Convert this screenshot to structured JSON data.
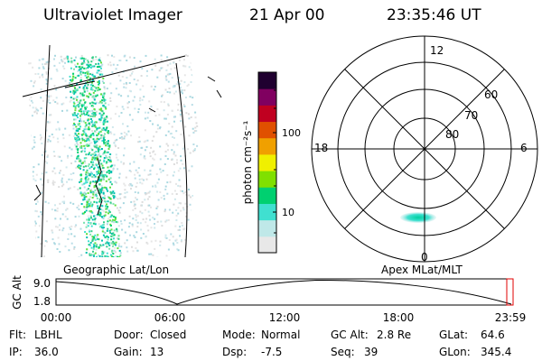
{
  "header": {
    "instrument": "Ultraviolet Imager",
    "date": "21 Apr 00",
    "time": "23:35:46 UT"
  },
  "colorbar": {
    "unit_label": "photon cm⁻²s⁻¹",
    "ticks": [
      "100",
      "10"
    ],
    "colors": [
      "#e8e8e8",
      "#bfe8e8",
      "#40e0d0",
      "#00d070",
      "#80e000",
      "#f0f000",
      "#f0a000",
      "#e05000",
      "#c00020",
      "#800060",
      "#200030"
    ]
  },
  "polar_plot": {
    "mlt_labels": {
      "top": "12",
      "left": "18",
      "right": "6",
      "bottom": "0"
    },
    "lat_labels": [
      "60",
      "70",
      "80"
    ]
  },
  "projection_labels": {
    "left": "Geographic Lat/Lon",
    "right": "Apex MLat/MLT"
  },
  "altitude_plot": {
    "y_title": "GC Alt",
    "y_ticks": [
      "9.0",
      "1.8"
    ],
    "x_ticks": [
      "00:00",
      "06:00",
      "12:00",
      "18:00",
      "23:59"
    ]
  },
  "footer": {
    "row1": [
      {
        "label": "Flt:",
        "value": "LBHL"
      },
      {
        "label": "Door:",
        "value": "Closed"
      },
      {
        "label": "Mode:",
        "value": "Normal"
      },
      {
        "label": "GC Alt:",
        "value": "2.8 Re"
      },
      {
        "label": "GLat:",
        "value": "64.6"
      }
    ],
    "row2": [
      {
        "label": "IP:",
        "value": "36.0"
      },
      {
        "label": "Gain:",
        "value": "13"
      },
      {
        "label": "Dsp:",
        "value": "-7.5"
      },
      {
        "label": "Seq:",
        "value": "39"
      },
      {
        "label": "GLon:",
        "value": "345.4"
      }
    ]
  }
}
